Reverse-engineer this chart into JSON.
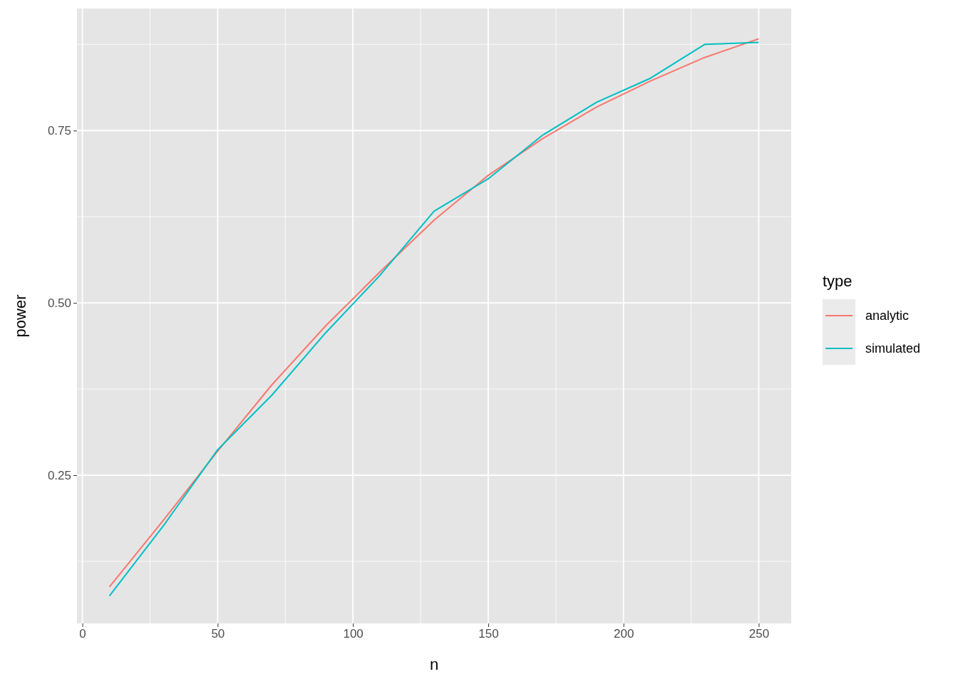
{
  "chart_data": {
    "type": "line",
    "xlabel": "n",
    "ylabel": "power",
    "legend_title": "type",
    "x": [
      10,
      30,
      50,
      70,
      90,
      110,
      130,
      150,
      170,
      190,
      210,
      230,
      250
    ],
    "series": [
      {
        "name": "analytic",
        "color": "#f8766d",
        "values": [
          0.088,
          0.185,
          0.285,
          0.381,
          0.467,
          0.545,
          0.62,
          0.685,
          0.738,
          0.784,
          0.822,
          0.856,
          0.883
        ]
      },
      {
        "name": "simulated",
        "color": "#00bfc4",
        "values": [
          0.075,
          0.177,
          0.287,
          0.366,
          0.457,
          0.54,
          0.633,
          0.68,
          0.743,
          0.791,
          0.826,
          0.875,
          0.878
        ]
      }
    ],
    "xlim": [
      -2,
      262
    ],
    "ylim": [
      0.035,
      0.927
    ],
    "xticks": [
      0,
      50,
      100,
      150,
      200,
      250
    ],
    "yticks": [
      {
        "value": 0.25,
        "label": "0.25"
      },
      {
        "value": 0.5,
        "label": "0.50"
      },
      {
        "value": 0.75,
        "label": "0.75"
      }
    ],
    "grid": true,
    "legend": "right",
    "marker": "none",
    "line_style": "solid"
  }
}
